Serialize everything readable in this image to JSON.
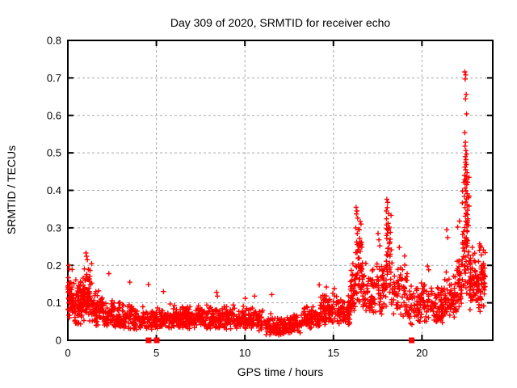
{
  "chart_data": {
    "type": "scatter",
    "title": "Day 309 of 2020, SRMTID for receiver echo",
    "xlabel": "GPS time / hours",
    "ylabel": "SRMTID / TECUs",
    "xlim": [
      0,
      24
    ],
    "ylim": [
      0,
      0.8
    ],
    "xticks": [
      0,
      5,
      10,
      15,
      20
    ],
    "xtick_labels": [
      "0",
      "5",
      "10",
      "15",
      "20"
    ],
    "yticks": [
      0,
      0.1,
      0.2,
      0.3,
      0.4,
      0.5,
      0.6,
      0.7,
      0.8
    ],
    "ytick_labels": [
      "0",
      "0.1",
      "0.2",
      "0.3",
      "0.4",
      "0.5",
      "0.6",
      "0.7",
      "0.8"
    ],
    "grid": true,
    "legend": false,
    "marker": "plus",
    "marker_color": "#ff0000",
    "grid_color": "#a8a8a8",
    "border_color": "#000000",
    "seed": 42,
    "zero_squares_x": [
      4.56,
      5.02,
      19.42
    ],
    "bands": [
      [
        0.0,
        0.35,
        55,
        0.05,
        0.2
      ],
      [
        0.35,
        0.85,
        65,
        0.04,
        0.17
      ],
      [
        0.85,
        1.35,
        75,
        0.05,
        0.21
      ],
      [
        1.35,
        1.95,
        65,
        0.035,
        0.15
      ],
      [
        1.95,
        2.65,
        65,
        0.03,
        0.115
      ],
      [
        2.65,
        3.65,
        85,
        0.025,
        0.105
      ],
      [
        3.65,
        5.05,
        110,
        0.028,
        0.095
      ],
      [
        5.05,
        6.55,
        120,
        0.03,
        0.098
      ],
      [
        6.55,
        8.05,
        120,
        0.03,
        0.1
      ],
      [
        8.05,
        9.55,
        120,
        0.028,
        0.1
      ],
      [
        9.55,
        11.05,
        115,
        0.025,
        0.092
      ],
      [
        11.05,
        12.25,
        95,
        0.012,
        0.075
      ],
      [
        12.25,
        13.25,
        85,
        0.018,
        0.072
      ],
      [
        13.25,
        14.25,
        85,
        0.03,
        0.095
      ],
      [
        14.25,
        15.25,
        90,
        0.04,
        0.135
      ],
      [
        15.25,
        15.95,
        60,
        0.04,
        0.125
      ],
      [
        15.95,
        16.25,
        38,
        0.06,
        0.21
      ],
      [
        16.25,
        16.62,
        50,
        0.1,
        0.33
      ],
      [
        16.62,
        17.45,
        65,
        0.07,
        0.21
      ],
      [
        17.45,
        17.98,
        48,
        0.06,
        0.22
      ],
      [
        17.98,
        18.28,
        34,
        0.12,
        0.355
      ],
      [
        18.28,
        19.25,
        70,
        0.055,
        0.22
      ],
      [
        19.25,
        20.25,
        75,
        0.04,
        0.18
      ],
      [
        20.25,
        21.25,
        85,
        0.045,
        0.165
      ],
      [
        21.25,
        21.95,
        65,
        0.06,
        0.19
      ],
      [
        21.95,
        22.28,
        38,
        0.08,
        0.27
      ],
      [
        22.28,
        22.68,
        55,
        0.11,
        0.48
      ],
      [
        22.68,
        23.12,
        55,
        0.08,
        0.28
      ],
      [
        23.12,
        23.58,
        60,
        0.07,
        0.26
      ]
    ],
    "outliers": [
      [
        0.05,
        0.2
      ],
      [
        0.08,
        0.19
      ],
      [
        1.02,
        0.233
      ],
      [
        1.06,
        0.224
      ],
      [
        1.1,
        0.215
      ],
      [
        2.32,
        0.178
      ],
      [
        3.5,
        0.155
      ],
      [
        4.55,
        0.149
      ],
      [
        5.4,
        0.13
      ],
      [
        8.4,
        0.128
      ],
      [
        8.45,
        0.118
      ],
      [
        10.02,
        0.112
      ],
      [
        10.55,
        0.118
      ],
      [
        11.52,
        0.122
      ],
      [
        14.2,
        0.148
      ],
      [
        14.6,
        0.142
      ],
      [
        15.05,
        0.138
      ],
      [
        16.28,
        0.355
      ],
      [
        16.33,
        0.345
      ],
      [
        16.3,
        0.337
      ],
      [
        16.37,
        0.326
      ],
      [
        16.26,
        0.3
      ],
      [
        16.43,
        0.296
      ],
      [
        16.35,
        0.285
      ],
      [
        16.48,
        0.272
      ],
      [
        16.31,
        0.262
      ],
      [
        16.45,
        0.251
      ],
      [
        16.39,
        0.242
      ],
      [
        17.52,
        0.285
      ],
      [
        17.57,
        0.268
      ],
      [
        17.62,
        0.252
      ],
      [
        18.02,
        0.376
      ],
      [
        18.07,
        0.368
      ],
      [
        18.04,
        0.354
      ],
      [
        18.11,
        0.338
      ],
      [
        18.0,
        0.324
      ],
      [
        18.09,
        0.312
      ],
      [
        18.13,
        0.298
      ],
      [
        18.05,
        0.286
      ],
      [
        18.02,
        0.272
      ],
      [
        18.16,
        0.258
      ],
      [
        18.1,
        0.246
      ],
      [
        18.07,
        0.236
      ],
      [
        18.19,
        0.224
      ],
      [
        18.72,
        0.248
      ],
      [
        19.02,
        0.225
      ],
      [
        20.32,
        0.198
      ],
      [
        20.38,
        0.188
      ],
      [
        21.4,
        0.295
      ],
      [
        21.46,
        0.274
      ],
      [
        22.02,
        0.302
      ],
      [
        22.12,
        0.318
      ],
      [
        22.42,
        0.716
      ],
      [
        22.47,
        0.708
      ],
      [
        22.44,
        0.697
      ],
      [
        22.5,
        0.656
      ],
      [
        22.46,
        0.644
      ],
      [
        22.52,
        0.604
      ],
      [
        22.42,
        0.554
      ],
      [
        22.46,
        0.528
      ],
      [
        22.43,
        0.518
      ],
      [
        22.48,
        0.506
      ],
      [
        22.52,
        0.497
      ],
      [
        22.45,
        0.49
      ],
      [
        22.49,
        0.482
      ],
      [
        22.46,
        0.475
      ],
      [
        22.51,
        0.469
      ],
      [
        22.43,
        0.462
      ],
      [
        22.47,
        0.455
      ],
      [
        22.55,
        0.447
      ],
      [
        22.41,
        0.44
      ],
      [
        22.5,
        0.431
      ],
      [
        22.46,
        0.424
      ],
      [
        22.53,
        0.415
      ],
      [
        22.44,
        0.406
      ],
      [
        22.49,
        0.399
      ],
      [
        22.56,
        0.391
      ],
      [
        22.4,
        0.384
      ],
      [
        22.52,
        0.377
      ],
      [
        22.47,
        0.369
      ],
      [
        22.55,
        0.361
      ],
      [
        22.43,
        0.354
      ],
      [
        22.58,
        0.347
      ],
      [
        22.5,
        0.339
      ],
      [
        22.45,
        0.331
      ],
      [
        22.6,
        0.324
      ],
      [
        22.48,
        0.317
      ],
      [
        22.54,
        0.309
      ],
      [
        22.42,
        0.301
      ],
      [
        23.3,
        0.252
      ],
      [
        23.25,
        0.24
      ],
      [
        23.35,
        0.228
      ]
    ]
  },
  "colors": {
    "background": "#ffffff",
    "text": "#000000",
    "marker": "#ff0000",
    "grid": "#a8a8a8",
    "border": "#000000"
  }
}
